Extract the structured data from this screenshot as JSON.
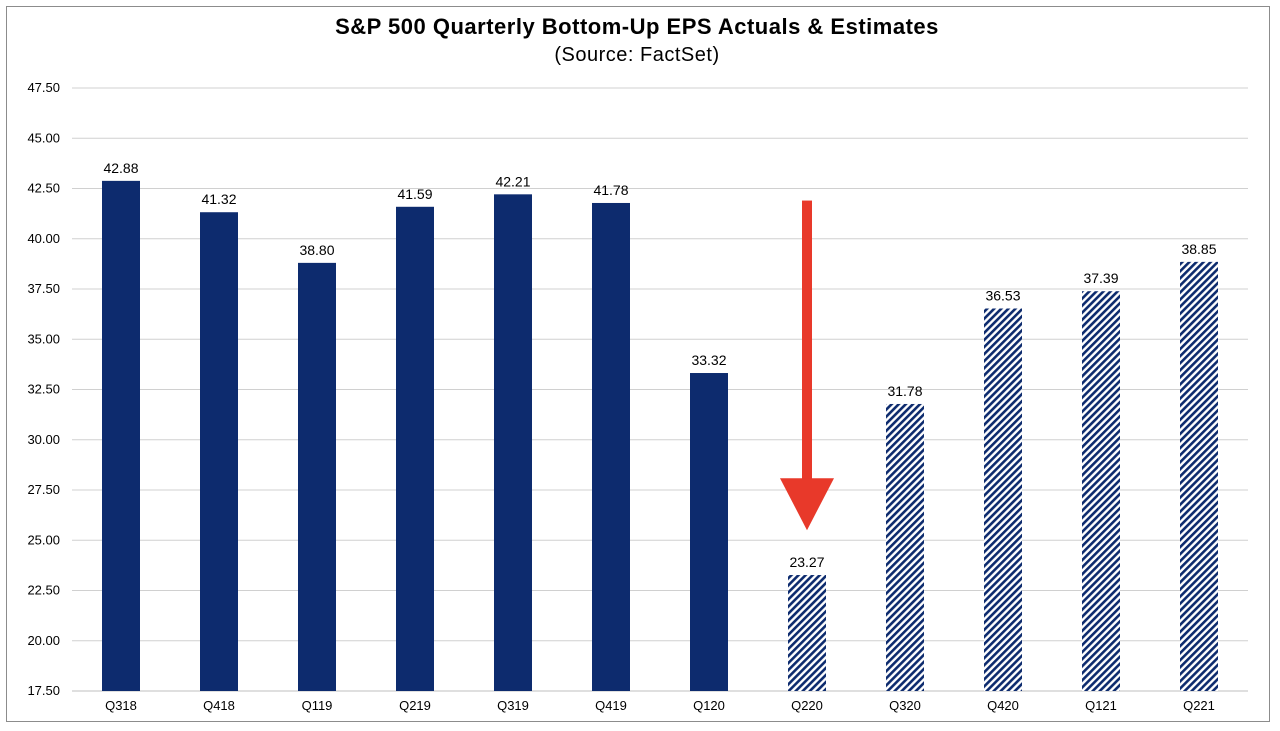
{
  "chart_data": {
    "type": "bar",
    "title": "S&P 500 Quarterly Bottom-Up EPS Actuals & Estimates",
    "subtitle": "(Source: FactSet)",
    "xlabel": "",
    "ylabel": "",
    "ylim": [
      17.5,
      47.5
    ],
    "yticks": [
      "17.50",
      "20.00",
      "22.50",
      "25.00",
      "27.50",
      "30.00",
      "32.50",
      "35.00",
      "37.50",
      "40.00",
      "42.50",
      "45.00",
      "47.50"
    ],
    "grid": true,
    "categories": [
      "Q318",
      "Q418",
      "Q119",
      "Q219",
      "Q319",
      "Q419",
      "Q120",
      "Q220",
      "Q320",
      "Q420",
      "Q121",
      "Q221"
    ],
    "series": [
      {
        "name": "Actuals",
        "values": [
          42.88,
          41.32,
          38.8,
          41.59,
          42.21,
          41.78,
          33.32,
          null,
          null,
          null,
          null,
          null
        ],
        "color": "#0d2b6e"
      },
      {
        "name": "Estimates",
        "values": [
          null,
          null,
          null,
          null,
          null,
          null,
          null,
          23.27,
          31.78,
          36.53,
          37.39,
          38.85
        ],
        "color": "#0d2b6e",
        "pattern": "hatched"
      }
    ],
    "data_labels": [
      "42.88",
      "41.32",
      "38.80",
      "41.59",
      "42.21",
      "41.78",
      "33.32",
      "23.27",
      "31.78",
      "36.53",
      "37.39",
      "38.85"
    ],
    "annotation": {
      "type": "arrow",
      "color": "#e8392a",
      "from_value": 41.9,
      "to_value": 25.5,
      "category": "Q220"
    }
  }
}
